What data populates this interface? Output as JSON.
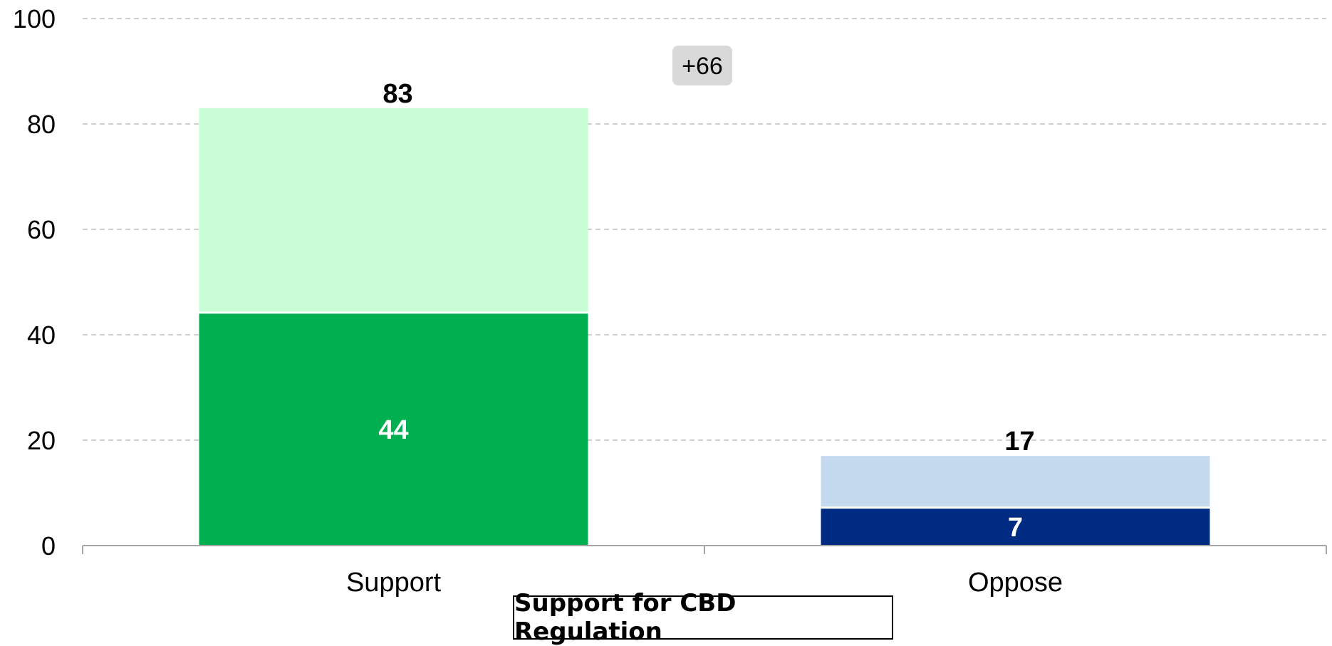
{
  "chart_data": {
    "type": "bar",
    "stacked": true,
    "title": "Support for CBD Regulation",
    "categories": [
      "Support",
      "Oppose"
    ],
    "series": [
      {
        "values": [
          44,
          7
        ],
        "colors": [
          "#00B050",
          "#002B82"
        ]
      },
      {
        "values": [
          39,
          10
        ],
        "colors": [
          "#C8FDD6",
          "#C5D9EF"
        ]
      }
    ],
    "totals": [
      83,
      17
    ],
    "segment_labels": [
      "44",
      "7"
    ],
    "total_labels": [
      "83",
      "17"
    ],
    "net_label": "+66",
    "ylim": [
      0,
      100
    ],
    "yticks": [
      0,
      20,
      40,
      60,
      80,
      100
    ],
    "ytick_labels": [
      "0",
      "20",
      "40",
      "60",
      "80",
      "100"
    ],
    "grid": true,
    "xlabel": "",
    "ylabel": ""
  }
}
